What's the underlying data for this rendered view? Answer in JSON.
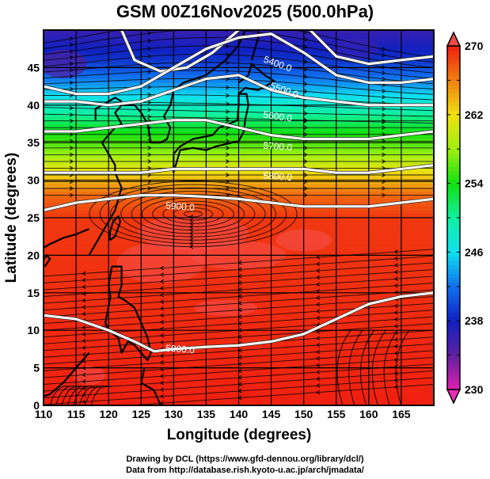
{
  "title": "GSM 00Z16Nov2025 (500.0hPa)",
  "map": {
    "type": "map",
    "projection": "equirectangular",
    "lon_range": [
      110,
      170
    ],
    "lat_range": [
      0,
      50
    ],
    "xlabel": "Longitude (degrees)",
    "ylabel": "Latitude  (degrees)",
    "x_ticks": [
      "110",
      "115",
      "120",
      "125",
      "130",
      "135",
      "140",
      "145",
      "150",
      "155",
      "160",
      "165"
    ],
    "y_ticks": [
      "0",
      "5",
      "10",
      "15",
      "20",
      "25",
      "30",
      "35",
      "40",
      "45"
    ],
    "grid": true,
    "shaded_field": "Temperature (K)",
    "contour_field": "Geopotential height (m)",
    "vectors": "Streamlines (wind)",
    "contour_labels": [
      {
        "text": "5400.0",
        "lon": 146,
        "lat": 45.5
      },
      {
        "text": "5500.0",
        "lon": 147,
        "lat": 42
      },
      {
        "text": "5600.0",
        "lon": 146,
        "lat": 38.5
      },
      {
        "text": "5700.0",
        "lon": 146,
        "lat": 34.5
      },
      {
        "text": "5800.0",
        "lon": 146,
        "lat": 30.5
      },
      {
        "text": "5900.0",
        "lon": 131,
        "lat": 26.5
      },
      {
        "text": "5900.0",
        "lon": 131,
        "lat": 7.5
      }
    ],
    "contours": [
      {
        "level": 5400,
        "points": [
          [
            122,
            50
          ],
          [
            124,
            46
          ],
          [
            128,
            44.5
          ],
          [
            132,
            45
          ],
          [
            136,
            47
          ],
          [
            140,
            50
          ]
        ]
      },
      {
        "level": 5400,
        "points": [
          [
            151,
            50
          ],
          [
            155,
            46.5
          ],
          [
            160,
            45.5
          ],
          [
            165,
            46
          ],
          [
            170,
            46.5
          ]
        ]
      },
      {
        "level": 5500,
        "points": [
          [
            110,
            42.5
          ],
          [
            115,
            41.5
          ],
          [
            120,
            41.5
          ],
          [
            125,
            42.5
          ],
          [
            130,
            45
          ],
          [
            135,
            47.5
          ],
          [
            140,
            49
          ],
          [
            145,
            49.5
          ],
          [
            150,
            47
          ],
          [
            155,
            44
          ],
          [
            160,
            43
          ],
          [
            165,
            43
          ],
          [
            170,
            43.5
          ]
        ]
      },
      {
        "level": 5600,
        "points": [
          [
            110,
            40.5
          ],
          [
            115,
            40.5
          ],
          [
            120,
            40
          ],
          [
            125,
            40.5
          ],
          [
            130,
            42
          ],
          [
            135,
            43.5
          ],
          [
            140,
            44
          ],
          [
            145,
            42
          ],
          [
            150,
            41
          ],
          [
            155,
            40.5
          ],
          [
            160,
            40
          ],
          [
            165,
            40
          ],
          [
            170,
            40
          ]
        ]
      },
      {
        "level": 5700,
        "points": [
          [
            110,
            36.5
          ],
          [
            115,
            36.5
          ],
          [
            120,
            37
          ],
          [
            125,
            37.5
          ],
          [
            130,
            38
          ],
          [
            135,
            38
          ],
          [
            140,
            37
          ],
          [
            145,
            36
          ],
          [
            150,
            35.5
          ],
          [
            155,
            35.5
          ],
          [
            160,
            35.5
          ],
          [
            165,
            36
          ],
          [
            170,
            36.5
          ]
        ]
      },
      {
        "level": 5800,
        "points": [
          [
            110,
            31
          ],
          [
            115,
            31
          ],
          [
            120,
            31
          ],
          [
            125,
            31
          ],
          [
            130,
            31.5
          ],
          [
            135,
            31.5
          ],
          [
            140,
            31.5
          ],
          [
            145,
            31.5
          ],
          [
            150,
            31.5
          ],
          [
            155,
            31
          ],
          [
            160,
            31
          ],
          [
            165,
            31.5
          ],
          [
            170,
            32
          ]
        ]
      },
      {
        "level": 5900,
        "points": [
          [
            110,
            26
          ],
          [
            115,
            27
          ],
          [
            120,
            27.5
          ],
          [
            125,
            28
          ],
          [
            130,
            28
          ],
          [
            135,
            27.8
          ],
          [
            140,
            27.5
          ],
          [
            145,
            27
          ],
          [
            150,
            26.5
          ],
          [
            155,
            26.5
          ],
          [
            160,
            26.5
          ],
          [
            165,
            27
          ],
          [
            170,
            27.5
          ]
        ]
      },
      {
        "level": 5900,
        "points": [
          [
            110,
            12
          ],
          [
            115,
            11.5
          ],
          [
            120,
            10
          ],
          [
            124,
            8.5
          ],
          [
            127,
            7.2
          ],
          [
            130,
            7.5
          ],
          [
            135,
            7.8
          ],
          [
            140,
            8
          ],
          [
            145,
            8.5
          ],
          [
            150,
            9.5
          ],
          [
            155,
            11.5
          ],
          [
            160,
            13.5
          ],
          [
            165,
            14.5
          ],
          [
            170,
            15
          ]
        ]
      }
    ],
    "colorbar": {
      "min": 230,
      "max": 270,
      "tick_labels": [
        "230",
        "238",
        "246",
        "254",
        "262",
        "270"
      ],
      "stops": [
        {
          "value": 230,
          "color": "#e020b0"
        },
        {
          "value": 234,
          "color": "#6020a0"
        },
        {
          "value": 238,
          "color": "#1020c0"
        },
        {
          "value": 242,
          "color": "#1070f0"
        },
        {
          "value": 246,
          "color": "#10e0f0"
        },
        {
          "value": 250,
          "color": "#10f0a0"
        },
        {
          "value": 254,
          "color": "#10e010"
        },
        {
          "value": 258,
          "color": "#a0f010"
        },
        {
          "value": 262,
          "color": "#f0e010"
        },
        {
          "value": 266,
          "color": "#f08010"
        },
        {
          "value": 270,
          "color": "#f02010"
        }
      ]
    },
    "temperature_by_lat": [
      {
        "lat": 50,
        "value": 236
      },
      {
        "lat": 46,
        "value": 239
      },
      {
        "lat": 43,
        "value": 243
      },
      {
        "lat": 40,
        "value": 248
      },
      {
        "lat": 37,
        "value": 253
      },
      {
        "lat": 34,
        "value": 257
      },
      {
        "lat": 31,
        "value": 262
      },
      {
        "lat": 28,
        "value": 267
      },
      {
        "lat": 25,
        "value": 269
      },
      {
        "lat": 0,
        "value": 270
      }
    ]
  },
  "credits": {
    "line1": "Drawing by DCL (https://www.gfd-dennou.org/library/dcl/)",
    "line2": "Data from http://database.rish.kyoto-u.ac.jp/arch/jmadata/"
  }
}
